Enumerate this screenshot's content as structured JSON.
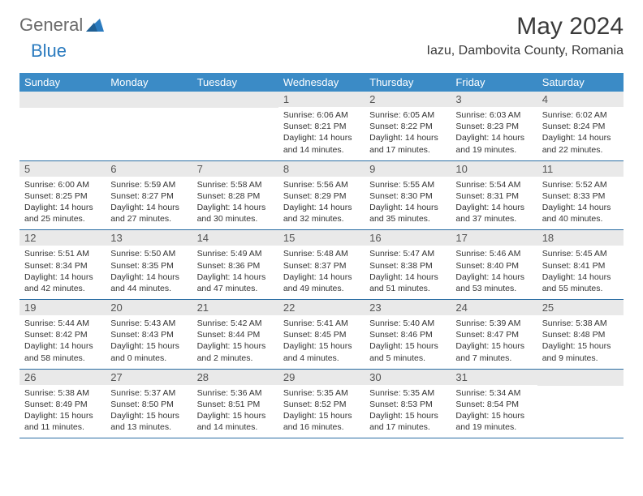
{
  "brand": {
    "word1": "General",
    "word2": "Blue"
  },
  "title": "May 2024",
  "location": "Iazu, Dambovita County, Romania",
  "colors": {
    "header_bg": "#3b8bc6",
    "header_text": "#ffffff",
    "daynum_bg": "#e9e9e9",
    "row_border": "#2a6da3",
    "logo_gray": "#6a6a6a",
    "logo_blue": "#2b7bbf"
  },
  "weekdays": [
    "Sunday",
    "Monday",
    "Tuesday",
    "Wednesday",
    "Thursday",
    "Friday",
    "Saturday"
  ],
  "weeks": [
    [
      null,
      null,
      null,
      {
        "n": "1",
        "sr": "Sunrise: 6:06 AM",
        "ss": "Sunset: 8:21 PM",
        "dl": "Daylight: 14 hours and 14 minutes."
      },
      {
        "n": "2",
        "sr": "Sunrise: 6:05 AM",
        "ss": "Sunset: 8:22 PM",
        "dl": "Daylight: 14 hours and 17 minutes."
      },
      {
        "n": "3",
        "sr": "Sunrise: 6:03 AM",
        "ss": "Sunset: 8:23 PM",
        "dl": "Daylight: 14 hours and 19 minutes."
      },
      {
        "n": "4",
        "sr": "Sunrise: 6:02 AM",
        "ss": "Sunset: 8:24 PM",
        "dl": "Daylight: 14 hours and 22 minutes."
      }
    ],
    [
      {
        "n": "5",
        "sr": "Sunrise: 6:00 AM",
        "ss": "Sunset: 8:25 PM",
        "dl": "Daylight: 14 hours and 25 minutes."
      },
      {
        "n": "6",
        "sr": "Sunrise: 5:59 AM",
        "ss": "Sunset: 8:27 PM",
        "dl": "Daylight: 14 hours and 27 minutes."
      },
      {
        "n": "7",
        "sr": "Sunrise: 5:58 AM",
        "ss": "Sunset: 8:28 PM",
        "dl": "Daylight: 14 hours and 30 minutes."
      },
      {
        "n": "8",
        "sr": "Sunrise: 5:56 AM",
        "ss": "Sunset: 8:29 PM",
        "dl": "Daylight: 14 hours and 32 minutes."
      },
      {
        "n": "9",
        "sr": "Sunrise: 5:55 AM",
        "ss": "Sunset: 8:30 PM",
        "dl": "Daylight: 14 hours and 35 minutes."
      },
      {
        "n": "10",
        "sr": "Sunrise: 5:54 AM",
        "ss": "Sunset: 8:31 PM",
        "dl": "Daylight: 14 hours and 37 minutes."
      },
      {
        "n": "11",
        "sr": "Sunrise: 5:52 AM",
        "ss": "Sunset: 8:33 PM",
        "dl": "Daylight: 14 hours and 40 minutes."
      }
    ],
    [
      {
        "n": "12",
        "sr": "Sunrise: 5:51 AM",
        "ss": "Sunset: 8:34 PM",
        "dl": "Daylight: 14 hours and 42 minutes."
      },
      {
        "n": "13",
        "sr": "Sunrise: 5:50 AM",
        "ss": "Sunset: 8:35 PM",
        "dl": "Daylight: 14 hours and 44 minutes."
      },
      {
        "n": "14",
        "sr": "Sunrise: 5:49 AM",
        "ss": "Sunset: 8:36 PM",
        "dl": "Daylight: 14 hours and 47 minutes."
      },
      {
        "n": "15",
        "sr": "Sunrise: 5:48 AM",
        "ss": "Sunset: 8:37 PM",
        "dl": "Daylight: 14 hours and 49 minutes."
      },
      {
        "n": "16",
        "sr": "Sunrise: 5:47 AM",
        "ss": "Sunset: 8:38 PM",
        "dl": "Daylight: 14 hours and 51 minutes."
      },
      {
        "n": "17",
        "sr": "Sunrise: 5:46 AM",
        "ss": "Sunset: 8:40 PM",
        "dl": "Daylight: 14 hours and 53 minutes."
      },
      {
        "n": "18",
        "sr": "Sunrise: 5:45 AM",
        "ss": "Sunset: 8:41 PM",
        "dl": "Daylight: 14 hours and 55 minutes."
      }
    ],
    [
      {
        "n": "19",
        "sr": "Sunrise: 5:44 AM",
        "ss": "Sunset: 8:42 PM",
        "dl": "Daylight: 14 hours and 58 minutes."
      },
      {
        "n": "20",
        "sr": "Sunrise: 5:43 AM",
        "ss": "Sunset: 8:43 PM",
        "dl": "Daylight: 15 hours and 0 minutes."
      },
      {
        "n": "21",
        "sr": "Sunrise: 5:42 AM",
        "ss": "Sunset: 8:44 PM",
        "dl": "Daylight: 15 hours and 2 minutes."
      },
      {
        "n": "22",
        "sr": "Sunrise: 5:41 AM",
        "ss": "Sunset: 8:45 PM",
        "dl": "Daylight: 15 hours and 4 minutes."
      },
      {
        "n": "23",
        "sr": "Sunrise: 5:40 AM",
        "ss": "Sunset: 8:46 PM",
        "dl": "Daylight: 15 hours and 5 minutes."
      },
      {
        "n": "24",
        "sr": "Sunrise: 5:39 AM",
        "ss": "Sunset: 8:47 PM",
        "dl": "Daylight: 15 hours and 7 minutes."
      },
      {
        "n": "25",
        "sr": "Sunrise: 5:38 AM",
        "ss": "Sunset: 8:48 PM",
        "dl": "Daylight: 15 hours and 9 minutes."
      }
    ],
    [
      {
        "n": "26",
        "sr": "Sunrise: 5:38 AM",
        "ss": "Sunset: 8:49 PM",
        "dl": "Daylight: 15 hours and 11 minutes."
      },
      {
        "n": "27",
        "sr": "Sunrise: 5:37 AM",
        "ss": "Sunset: 8:50 PM",
        "dl": "Daylight: 15 hours and 13 minutes."
      },
      {
        "n": "28",
        "sr": "Sunrise: 5:36 AM",
        "ss": "Sunset: 8:51 PM",
        "dl": "Daylight: 15 hours and 14 minutes."
      },
      {
        "n": "29",
        "sr": "Sunrise: 5:35 AM",
        "ss": "Sunset: 8:52 PM",
        "dl": "Daylight: 15 hours and 16 minutes."
      },
      {
        "n": "30",
        "sr": "Sunrise: 5:35 AM",
        "ss": "Sunset: 8:53 PM",
        "dl": "Daylight: 15 hours and 17 minutes."
      },
      {
        "n": "31",
        "sr": "Sunrise: 5:34 AM",
        "ss": "Sunset: 8:54 PM",
        "dl": "Daylight: 15 hours and 19 minutes."
      },
      null
    ]
  ]
}
